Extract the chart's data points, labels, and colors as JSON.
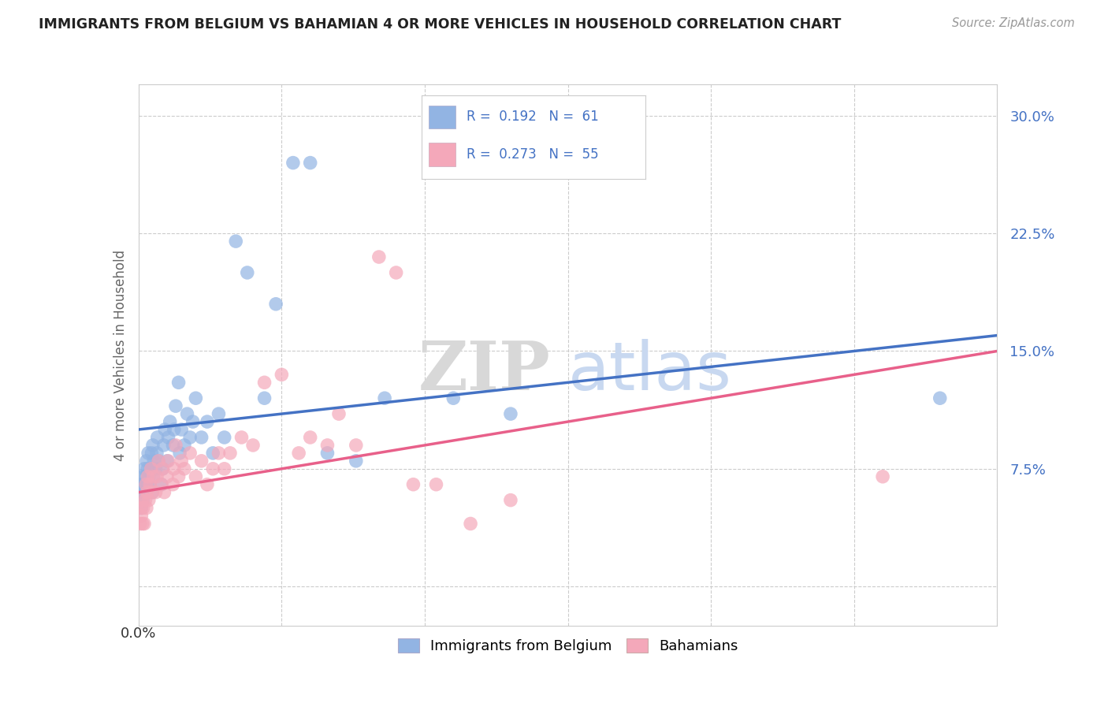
{
  "title": "IMMIGRANTS FROM BELGIUM VS BAHAMIAN 4 OR MORE VEHICLES IN HOUSEHOLD CORRELATION CHART",
  "source": "Source: ZipAtlas.com",
  "ylabel": "4 or more Vehicles in Household",
  "ytick_labels": [
    "",
    "7.5%",
    "15.0%",
    "22.5%",
    "30.0%"
  ],
  "ytick_values": [
    0.0,
    0.075,
    0.15,
    0.225,
    0.3
  ],
  "xlim": [
    0.0,
    0.15
  ],
  "ylim": [
    -0.025,
    0.32
  ],
  "legend_line1": "R = 0.192   N = 61",
  "legend_line2": "R = 0.273   N = 55",
  "blue_color": "#92B4E3",
  "pink_color": "#F4A8BA",
  "blue_line_color": "#4472C4",
  "pink_line_color": "#E8608A",
  "legend_text_color": "#4472C4",
  "watermark_zip": "ZIP",
  "watermark_atlas": "atlas",
  "blue_points_x": [
    0.0003,
    0.0004,
    0.0005,
    0.0006,
    0.0007,
    0.0008,
    0.0009,
    0.001,
    0.0012,
    0.0013,
    0.0014,
    0.0015,
    0.0016,
    0.0017,
    0.0018,
    0.002,
    0.0022,
    0.0023,
    0.0024,
    0.0025,
    0.0026,
    0.0027,
    0.003,
    0.0032,
    0.0033,
    0.0035,
    0.004,
    0.0042,
    0.0044,
    0.0046,
    0.005,
    0.0052,
    0.0055,
    0.006,
    0.0062,
    0.0065,
    0.007,
    0.0072,
    0.0075,
    0.008,
    0.0085,
    0.009,
    0.0095,
    0.01,
    0.011,
    0.012,
    0.013,
    0.014,
    0.015,
    0.017,
    0.019,
    0.022,
    0.024,
    0.027,
    0.03,
    0.033,
    0.038,
    0.043,
    0.055,
    0.065,
    0.14
  ],
  "blue_points_y": [
    0.055,
    0.065,
    0.05,
    0.06,
    0.07,
    0.055,
    0.065,
    0.075,
    0.06,
    0.07,
    0.08,
    0.065,
    0.075,
    0.085,
    0.07,
    0.065,
    0.075,
    0.085,
    0.06,
    0.09,
    0.07,
    0.08,
    0.075,
    0.085,
    0.095,
    0.08,
    0.065,
    0.075,
    0.09,
    0.1,
    0.08,
    0.095,
    0.105,
    0.09,
    0.1,
    0.115,
    0.13,
    0.085,
    0.1,
    0.09,
    0.11,
    0.095,
    0.105,
    0.12,
    0.095,
    0.105,
    0.085,
    0.11,
    0.095,
    0.22,
    0.2,
    0.12,
    0.18,
    0.27,
    0.27,
    0.085,
    0.08,
    0.12,
    0.12,
    0.11,
    0.12
  ],
  "pink_points_x": [
    0.0003,
    0.0004,
    0.0005,
    0.0006,
    0.0007,
    0.0008,
    0.001,
    0.0012,
    0.0013,
    0.0014,
    0.0015,
    0.0016,
    0.0018,
    0.002,
    0.0022,
    0.0024,
    0.0026,
    0.003,
    0.0032,
    0.0035,
    0.004,
    0.0042,
    0.0045,
    0.005,
    0.0052,
    0.006,
    0.0062,
    0.0065,
    0.007,
    0.0075,
    0.008,
    0.009,
    0.01,
    0.011,
    0.012,
    0.013,
    0.014,
    0.015,
    0.016,
    0.018,
    0.02,
    0.022,
    0.025,
    0.028,
    0.03,
    0.033,
    0.035,
    0.038,
    0.042,
    0.045,
    0.048,
    0.052,
    0.058,
    0.065,
    0.13
  ],
  "pink_points_y": [
    0.04,
    0.05,
    0.045,
    0.055,
    0.04,
    0.05,
    0.04,
    0.055,
    0.065,
    0.05,
    0.06,
    0.07,
    0.055,
    0.065,
    0.075,
    0.06,
    0.07,
    0.06,
    0.07,
    0.08,
    0.065,
    0.075,
    0.06,
    0.07,
    0.08,
    0.065,
    0.075,
    0.09,
    0.07,
    0.08,
    0.075,
    0.085,
    0.07,
    0.08,
    0.065,
    0.075,
    0.085,
    0.075,
    0.085,
    0.095,
    0.09,
    0.13,
    0.135,
    0.085,
    0.095,
    0.09,
    0.11,
    0.09,
    0.21,
    0.2,
    0.065,
    0.065,
    0.04,
    0.055,
    0.07
  ]
}
